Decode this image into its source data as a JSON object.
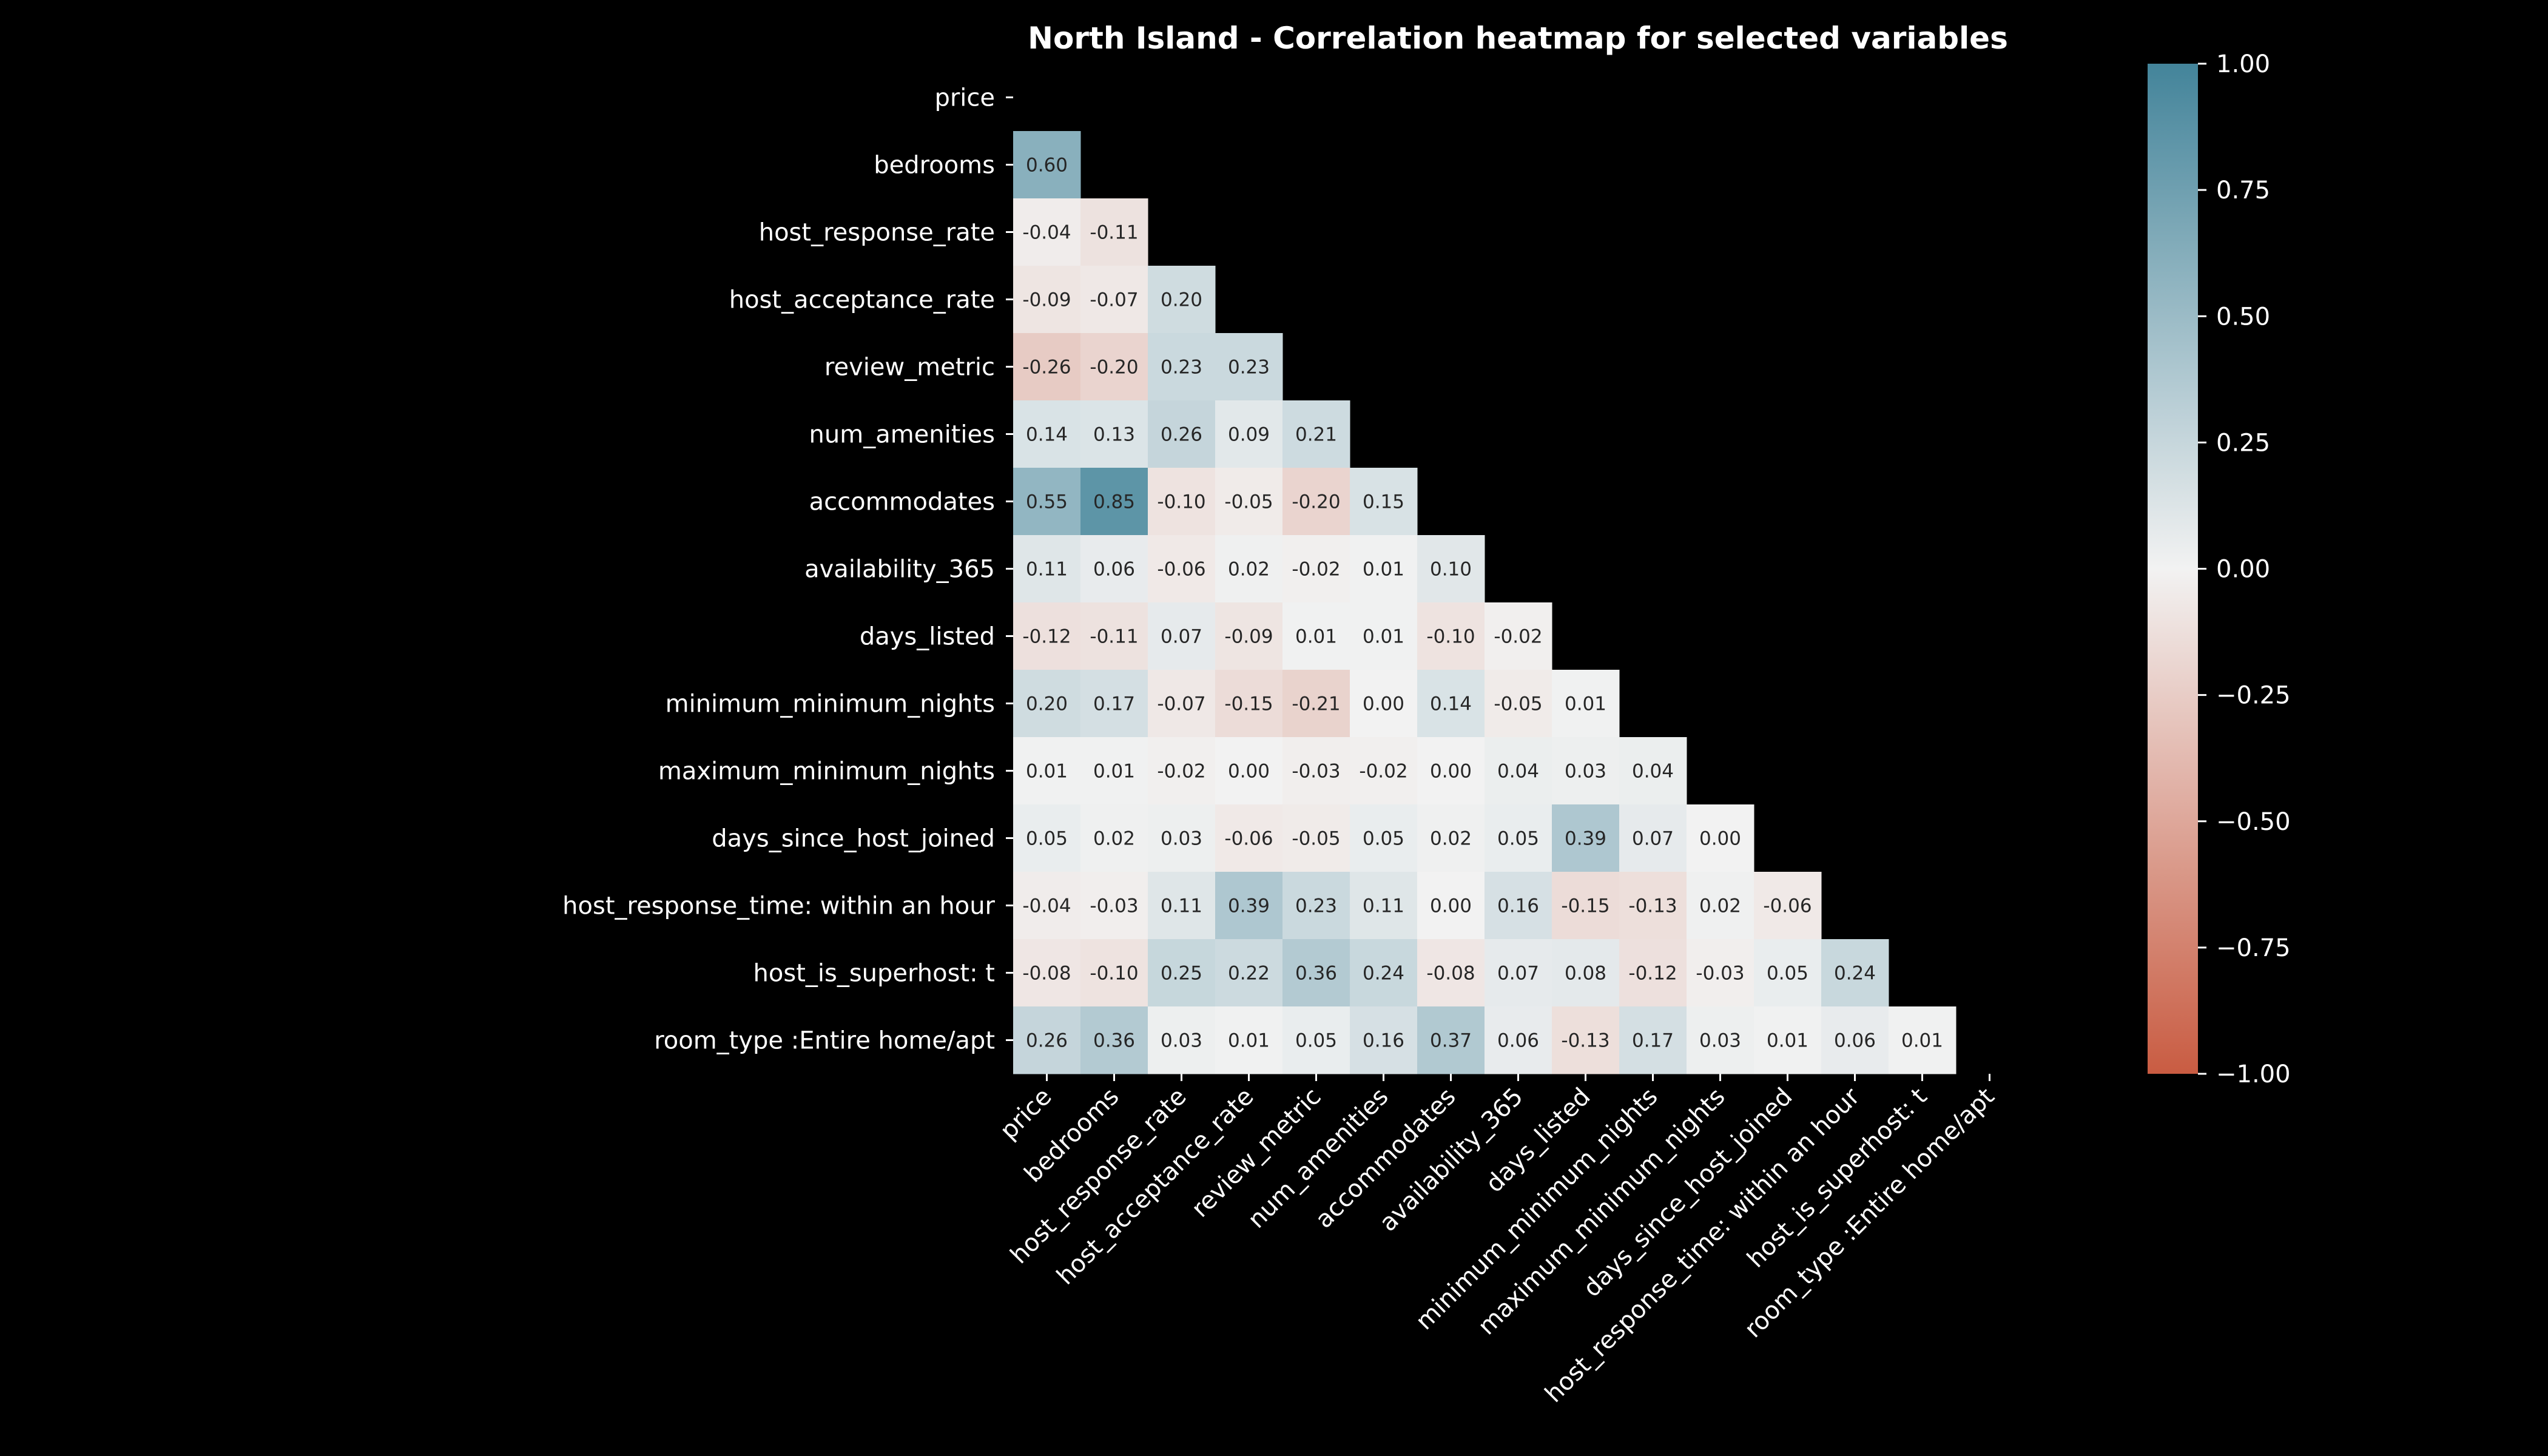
{
  "chart_data": {
    "type": "heatmap",
    "title": "North Island - Correlation heatmap for selected variables",
    "mask": "upper-triangle-including-diagonal",
    "labels": [
      "price",
      "bedrooms",
      "host_response_rate",
      "host_acceptance_rate",
      "review_metric",
      "num_amenities",
      "accommodates",
      "availability_365",
      "days_listed",
      "minimum_minimum_nights",
      "maximum_minimum_nights",
      "days_since_host_joined",
      "host_response_time: within an hour",
      "host_is_superhost: t",
      "room_type :Entire home/apt"
    ],
    "values": [
      [],
      [
        0.6
      ],
      [
        -0.04,
        -0.11
      ],
      [
        -0.09,
        -0.07,
        0.2
      ],
      [
        -0.26,
        -0.2,
        0.23,
        0.23
      ],
      [
        0.14,
        0.13,
        0.26,
        0.09,
        0.21
      ],
      [
        0.55,
        0.85,
        -0.1,
        -0.05,
        -0.2,
        0.15
      ],
      [
        0.11,
        0.06,
        -0.06,
        0.02,
        -0.02,
        0.01,
        0.1
      ],
      [
        -0.12,
        -0.11,
        0.07,
        -0.09,
        0.01,
        0.01,
        -0.1,
        -0.02
      ],
      [
        0.2,
        0.17,
        -0.07,
        -0.15,
        -0.21,
        -0.0,
        0.14,
        -0.05,
        0.01
      ],
      [
        0.01,
        0.01,
        -0.02,
        0.0,
        -0.03,
        -0.02,
        0.0,
        0.04,
        0.03,
        0.04
      ],
      [
        0.05,
        0.02,
        0.03,
        -0.06,
        -0.05,
        0.05,
        0.02,
        0.05,
        0.39,
        0.07,
        0.0
      ],
      [
        -0.04,
        -0.03,
        0.11,
        0.39,
        0.23,
        0.11,
        0.0,
        0.16,
        -0.15,
        -0.13,
        0.02,
        -0.06
      ],
      [
        -0.08,
        -0.1,
        0.25,
        0.22,
        0.36,
        0.24,
        -0.08,
        0.07,
        0.08,
        -0.12,
        -0.03,
        0.05,
        0.24
      ],
      [
        0.26,
        0.36,
        0.03,
        0.01,
        0.05,
        0.16,
        0.37,
        0.06,
        -0.13,
        0.17,
        0.03,
        0.01,
        0.06,
        0.01
      ]
    ],
    "value_format": "2 decimals",
    "colorbar": {
      "range": [
        -1.0,
        1.0
      ],
      "ticks": [
        "−1.00",
        "−0.75",
        "−0.50",
        "−0.25",
        "0.00",
        "0.25",
        "0.50",
        "0.75",
        "1.00"
      ],
      "colors": {
        "low": "#c95c42",
        "mid": "#f2f2f2",
        "high": "#43849a"
      }
    },
    "background": "#000000",
    "grid": false
  }
}
